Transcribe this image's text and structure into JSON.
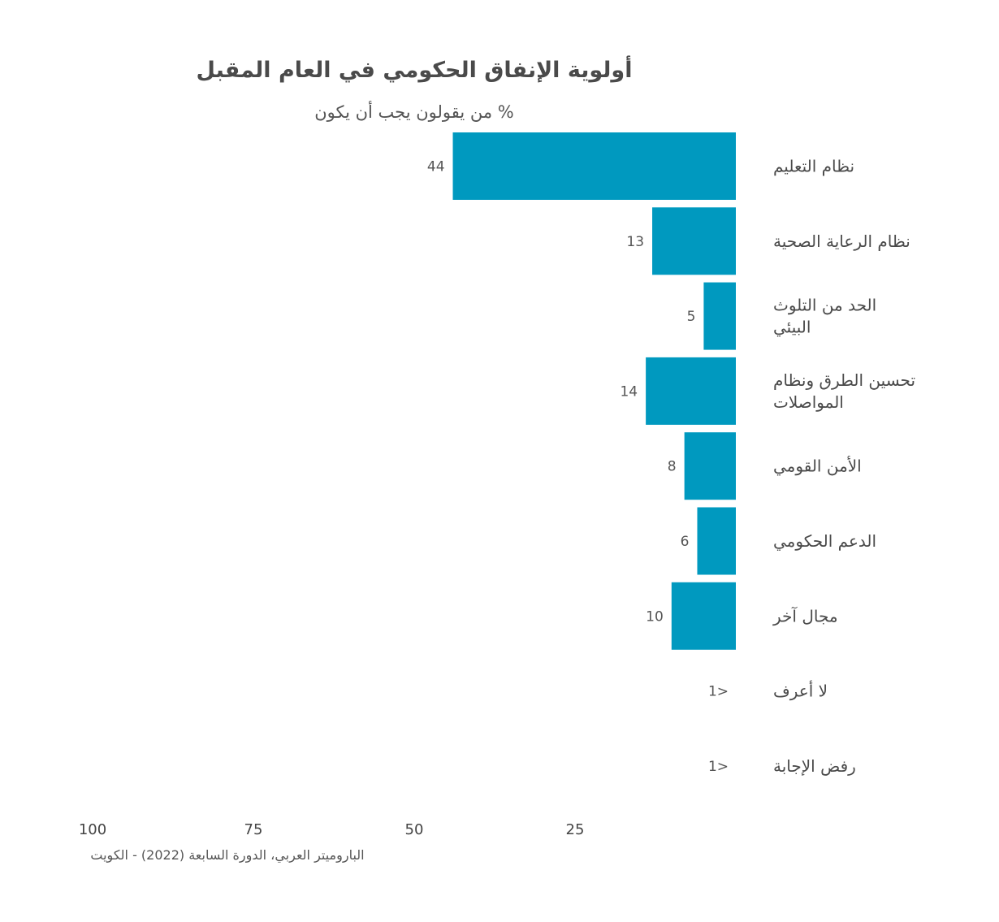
{
  "chart_data": {
    "type": "bar",
    "orientation": "horizontal",
    "direction": "right-to-left",
    "title": "أولوية الإنفاق الحكومي في العام المقبل",
    "subtitle": "% من يقولون يجب أن يكون",
    "categories": [
      [
        "نظام التعليم"
      ],
      [
        "نظام الرعاية الصحية"
      ],
      [
        "الحد من التلوث",
        "البيئي"
      ],
      [
        "تحسين الطرق ونظام",
        "المواصلات"
      ],
      [
        "الأمن القومي"
      ],
      [
        "الدعم الحكومي"
      ],
      [
        "مجال آخر"
      ],
      [
        "لا أعرف"
      ],
      [
        "رفض الإجابة"
      ]
    ],
    "values": [
      44,
      13,
      5,
      14,
      8,
      6,
      10,
      0.5,
      0.5
    ],
    "value_labels": [
      "44",
      "13",
      "5",
      "14",
      "8",
      "6",
      "10",
      "1>",
      "1>"
    ],
    "xticks": [
      100,
      75,
      50,
      25
    ],
    "xlim": [
      0,
      100
    ],
    "bar_color": "#0099bf",
    "grid": false,
    "source": "الباروميتر العربي، الدورة السابعة (2022) - الكويت"
  }
}
